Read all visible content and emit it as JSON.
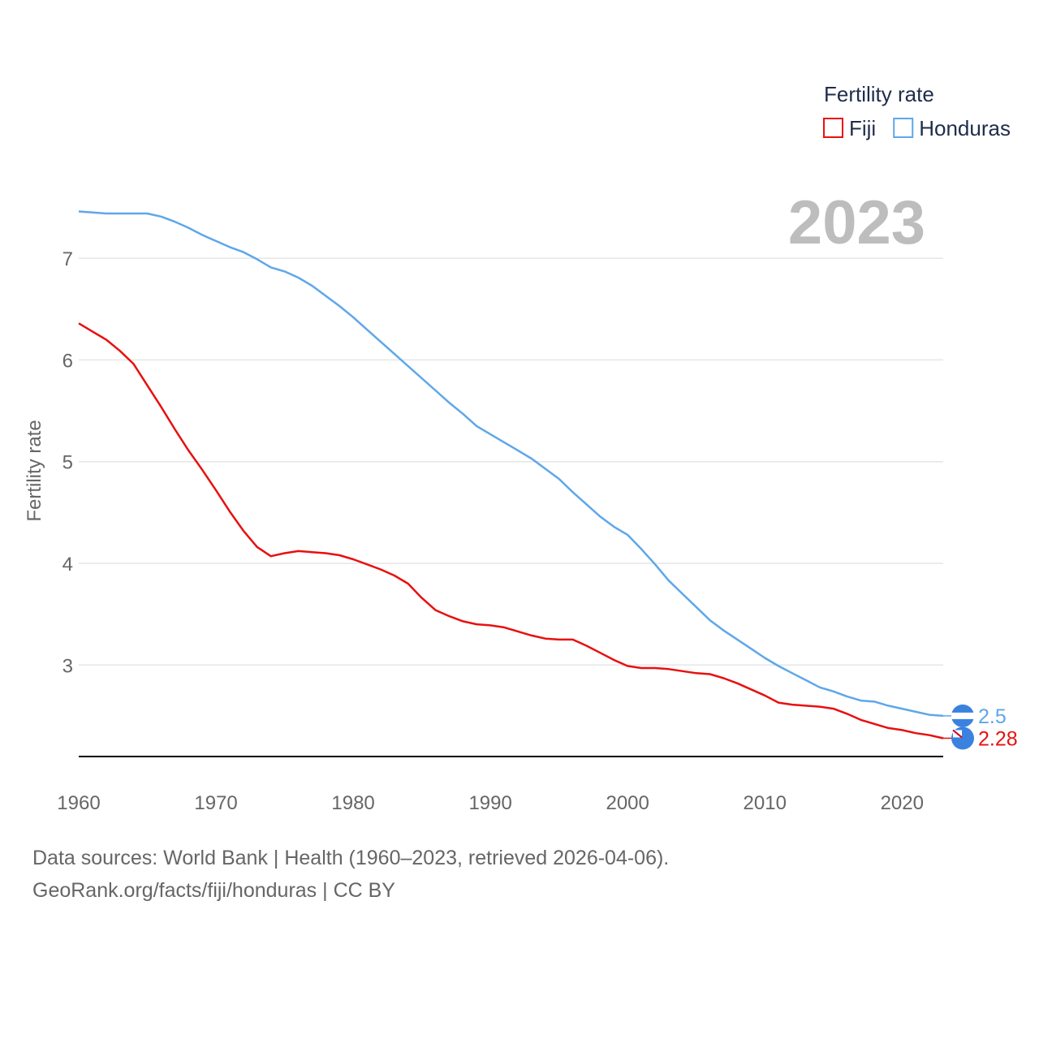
{
  "chart_data": {
    "type": "line",
    "title": "Fertility rate",
    "ylabel": "Fertility rate",
    "xlabel": "",
    "current_year": "2023",
    "xlim": [
      1960,
      2023
    ],
    "ylim": [
      2.1,
      7.6
    ],
    "x_ticks": [
      1960,
      1970,
      1980,
      1990,
      2000,
      2010,
      2020
    ],
    "y_ticks": [
      3,
      4,
      5,
      6,
      7
    ],
    "legend_title": "Fertility rate",
    "x": [
      1960,
      1961,
      1962,
      1963,
      1964,
      1965,
      1966,
      1967,
      1968,
      1969,
      1970,
      1971,
      1972,
      1973,
      1974,
      1975,
      1976,
      1977,
      1978,
      1979,
      1980,
      1981,
      1982,
      1983,
      1984,
      1985,
      1986,
      1987,
      1988,
      1989,
      1990,
      1991,
      1992,
      1993,
      1994,
      1995,
      1996,
      1997,
      1998,
      1999,
      2000,
      2001,
      2002,
      2003,
      2004,
      2005,
      2006,
      2007,
      2008,
      2009,
      2010,
      2011,
      2012,
      2013,
      2014,
      2015,
      2016,
      2017,
      2018,
      2019,
      2020,
      2021,
      2022,
      2023
    ],
    "series": [
      {
        "name": "Fiji",
        "color": "#e8100f",
        "end_label": "2.28",
        "values": [
          6.36,
          6.28,
          6.2,
          6.09,
          5.96,
          5.75,
          5.54,
          5.32,
          5.11,
          4.92,
          4.72,
          4.51,
          4.32,
          4.16,
          4.07,
          4.1,
          4.12,
          4.11,
          4.1,
          4.08,
          4.04,
          3.99,
          3.94,
          3.88,
          3.8,
          3.66,
          3.54,
          3.48,
          3.43,
          3.4,
          3.39,
          3.37,
          3.33,
          3.29,
          3.26,
          3.25,
          3.25,
          3.19,
          3.12,
          3.05,
          2.99,
          2.97,
          2.97,
          2.96,
          2.94,
          2.92,
          2.91,
          2.87,
          2.82,
          2.76,
          2.7,
          2.63,
          2.61,
          2.6,
          2.59,
          2.57,
          2.52,
          2.46,
          2.42,
          2.38,
          2.36,
          2.33,
          2.31,
          2.28
        ]
      },
      {
        "name": "Honduras",
        "color": "#5ea7ea",
        "end_label": "2.5",
        "values": [
          7.46,
          7.45,
          7.44,
          7.44,
          7.44,
          7.44,
          7.41,
          7.36,
          7.3,
          7.23,
          7.17,
          7.11,
          7.06,
          6.99,
          6.91,
          6.87,
          6.81,
          6.73,
          6.63,
          6.53,
          6.42,
          6.3,
          6.18,
          6.06,
          5.94,
          5.82,
          5.7,
          5.58,
          5.47,
          5.35,
          5.27,
          5.19,
          5.11,
          5.03,
          4.93,
          4.83,
          4.7,
          4.58,
          4.46,
          4.36,
          4.28,
          4.14,
          3.99,
          3.83,
          3.7,
          3.57,
          3.44,
          3.34,
          3.25,
          3.16,
          3.07,
          2.99,
          2.92,
          2.85,
          2.78,
          2.74,
          2.69,
          2.65,
          2.64,
          2.6,
          2.57,
          2.54,
          2.51,
          2.5
        ]
      }
    ]
  },
  "footer": {
    "line1": "Data sources: World Bank | Health (1960–2023, retrieved 2026-04-06).",
    "line2": "GeoRank.org/facts/fiji/honduras | CC BY"
  }
}
